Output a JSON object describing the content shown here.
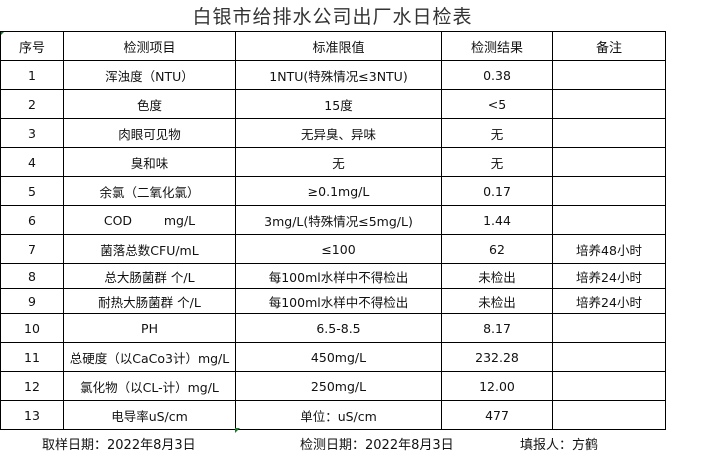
{
  "title": "白银市给排水公司出厂水日检表",
  "headers": [
    "序号",
    "检测项目",
    "标准限值",
    "检测结果",
    "备注"
  ],
  "rows": [
    [
      "1",
      "浑浊度（NTU）",
      "1NTU(特殊情况≤3NTU)",
      "0.38",
      ""
    ],
    [
      "2",
      "色度",
      "15度",
      "<5",
      ""
    ],
    [
      "3",
      "肉眼可见物",
      "无异臭、异味",
      "无",
      ""
    ],
    [
      "4",
      "臭和味",
      "无",
      "无",
      ""
    ],
    [
      "5",
      "余氯（二氧化氯）",
      "≥0.1mg/L",
      "0.17",
      ""
    ],
    [
      "6",
      "COD        mg/L",
      "3mg/L(特殊情况≤5mg/L)",
      "1.44",
      ""
    ],
    [
      "7",
      "菌落总数CFU/mL",
      "≤100",
      "62",
      "培养48小时"
    ],
    [
      "8",
      "总大肠菌群 个/L",
      "每100ml水样中不得检出",
      "未检出",
      "培养24小时"
    ],
    [
      "9",
      "耐热大肠菌群 个/L",
      "每100ml水样中不得检出",
      "未检出",
      "培养24小时"
    ],
    [
      "10",
      "PH",
      "6.5-8.5",
      "8.17",
      ""
    ],
    [
      "11",
      "总硬度（以CaCo3计）mg/L",
      "450mg/L",
      "232.28",
      ""
    ],
    [
      "12",
      "氯化物（以CL-计）mg/L",
      "250mg/L",
      "12.00",
      ""
    ],
    [
      "13",
      "电导率uS/cm",
      "单位：uS/cm",
      "477",
      ""
    ]
  ],
  "footer": {
    "sampling_date": "取样日期：2022年8月3日",
    "test_date": "检测日期：2022年8月3日",
    "reporter": "填报人：方鹤"
  }
}
